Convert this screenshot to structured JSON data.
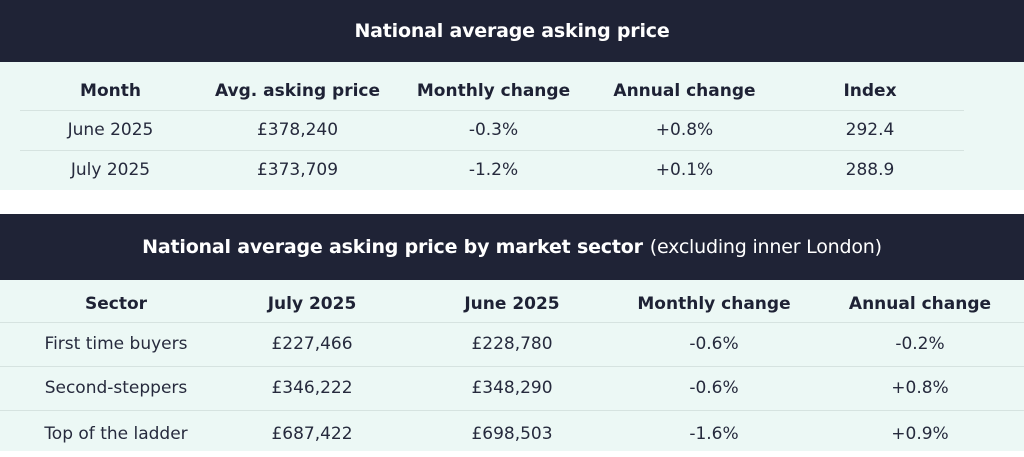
{
  "table1": {
    "title": "National average asking price",
    "headers": [
      "Month",
      "Avg. asking price",
      "Monthly change",
      "Annual change",
      "Index"
    ],
    "rows": [
      [
        "June 2025",
        "£378,240",
        "-0.3%",
        "+0.8%",
        "292.4"
      ],
      [
        "July 2025",
        "£373,709",
        "-1.2%",
        "+0.1%",
        "288.9"
      ]
    ]
  },
  "table2": {
    "title": "National average asking price by market sector",
    "subtitle": "(excluding inner London)",
    "headers": [
      "Sector",
      "July 2025",
      "June 2025",
      "Monthly change",
      "Annual change"
    ],
    "rows": [
      [
        "First time buyers",
        "£227,466",
        "£228,780",
        "-0.6%",
        "-0.2%"
      ],
      [
        "Second-steppers",
        "£346,222",
        "£348,290",
        "-0.6%",
        "+0.8%"
      ],
      [
        "Top of the ladder",
        "£687,422",
        "£698,503",
        "-1.6%",
        "+0.9%"
      ]
    ]
  },
  "colors": {
    "header_bg": "#1f2336",
    "body_bg": "#ecf8f5",
    "text": "#1e2235"
  }
}
